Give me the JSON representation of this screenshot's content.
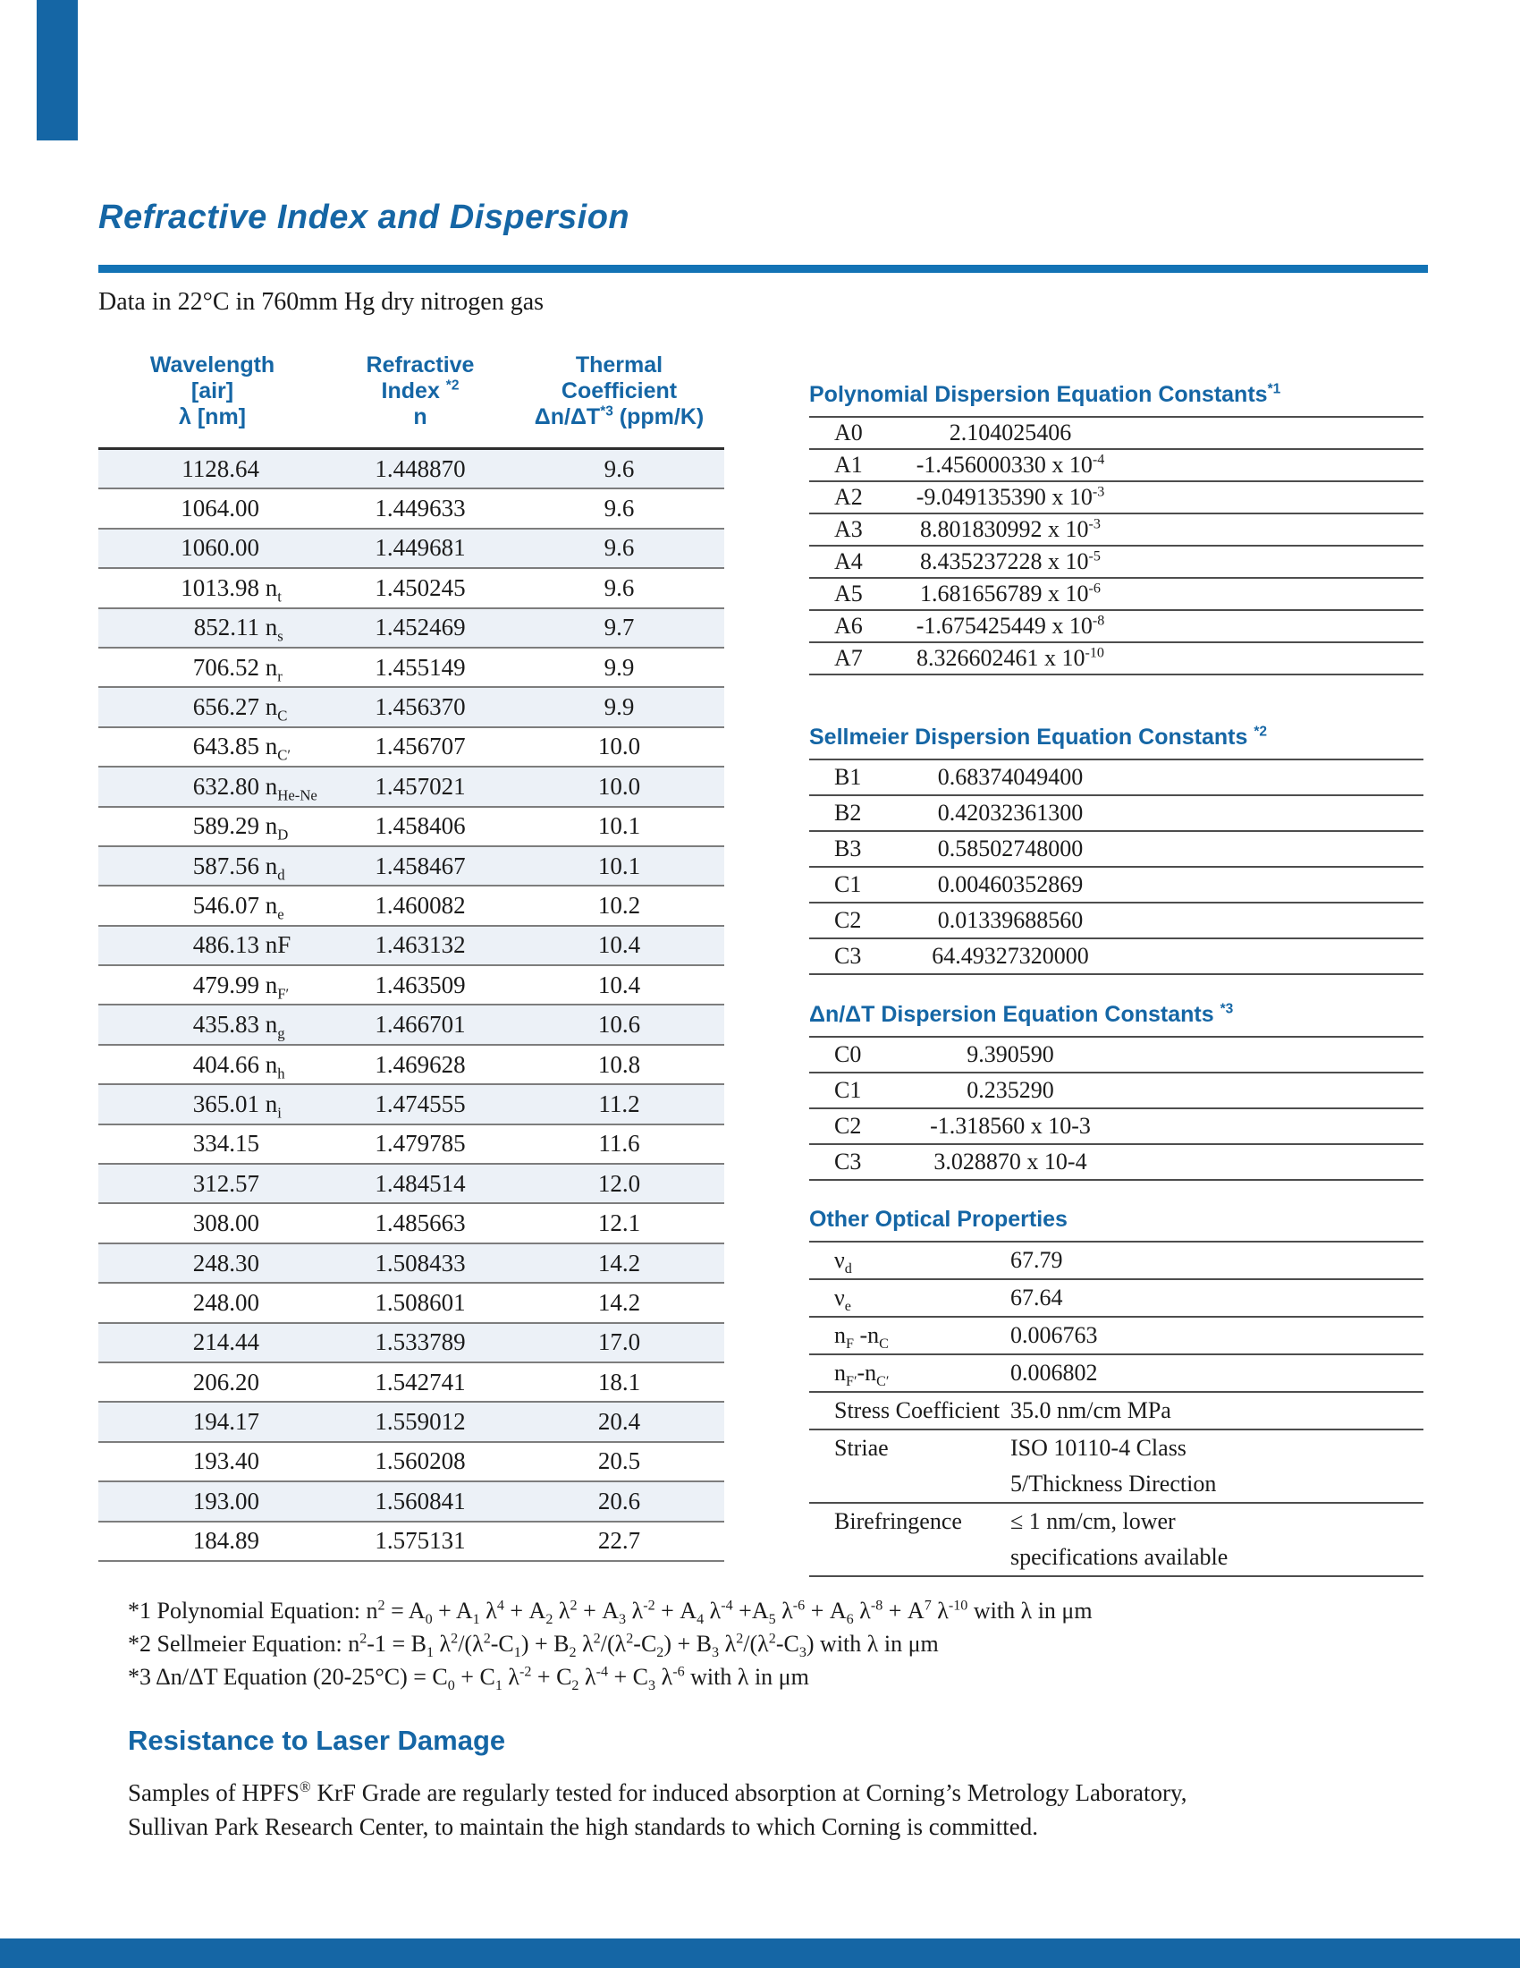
{
  "colors": {
    "heading_blue": "#1566a5",
    "rule_blue": "#1373b5",
    "bar_blue": "#1566a5",
    "row_shade": "#ecf1f7"
  },
  "header": {
    "title": "Refractive Index and Dispersion",
    "subtitle": "Data in 22°C in 760mm Hg dry nitrogen gas"
  },
  "refractive_table": {
    "col_headers": [
      "Wavelength\n[air]\nλ [nm]",
      "Refractive\nIndex ^{*2}\nn",
      "Thermal\nCoefficient\nΔn/ΔT^{*3} (ppm/K)"
    ],
    "rows": [
      [
        "1128.64",
        "1.448870",
        "9.6"
      ],
      [
        "1064.00",
        "1.449633",
        "9.6"
      ],
      [
        "1060.00",
        "1.449681",
        "9.6"
      ],
      [
        "1013.98 n_{t}",
        "1.450245",
        "9.6"
      ],
      [
        "852.11 n_{s}",
        "1.452469",
        "9.7"
      ],
      [
        "706.52 n_{r}",
        "1.455149",
        "9.9"
      ],
      [
        "656.27 n_{C}",
        "1.456370",
        "9.9"
      ],
      [
        "643.85 n_{C′}",
        "1.456707",
        "10.0"
      ],
      [
        "632.80 n_{He-Ne}",
        "1.457021",
        "10.0"
      ],
      [
        "589.29 n_{D}",
        "1.458406",
        "10.1"
      ],
      [
        "587.56 n_{d}",
        "1.458467",
        "10.1"
      ],
      [
        "546.07 n_{e}",
        "1.460082",
        "10.2"
      ],
      [
        "486.13 nF",
        "1.463132",
        "10.4"
      ],
      [
        "479.99 n_{F′}",
        "1.463509",
        "10.4"
      ],
      [
        "435.83 n_{g}",
        "1.466701",
        "10.6"
      ],
      [
        "404.66 n_{h}",
        "1.469628",
        "10.8"
      ],
      [
        "365.01 n_{i}",
        "1.474555",
        "11.2"
      ],
      [
        "334.15",
        "1.479785",
        "11.6"
      ],
      [
        "312.57",
        "1.484514",
        "12.0"
      ],
      [
        "308.00",
        "1.485663",
        "12.1"
      ],
      [
        "248.30",
        "1.508433",
        "14.2"
      ],
      [
        "248.00",
        "1.508601",
        "14.2"
      ],
      [
        "214.44",
        "1.533789",
        "17.0"
      ],
      [
        "206.20",
        "1.542741",
        "18.1"
      ],
      [
        "194.17",
        "1.559012",
        "20.4"
      ],
      [
        "193.40",
        "1.560208",
        "20.5"
      ],
      [
        "193.00",
        "1.560841",
        "20.6"
      ],
      [
        "184.89",
        "1.575131",
        "22.7"
      ]
    ]
  },
  "sections": {
    "polynomial": {
      "title": "Polynomial Dispersion Equation Constants^{*1}",
      "rows": [
        [
          "A0",
          "2.104025406"
        ],
        [
          "A1",
          "-1.456000330 x 10^{-4}"
        ],
        [
          "A2",
          "-9.049135390 x 10^{-3}"
        ],
        [
          "A3",
          "8.801830992 x 10^{-3}"
        ],
        [
          "A4",
          "8.435237228 x 10^{-5}"
        ],
        [
          "A5",
          "1.681656789 x 10^{-6}"
        ],
        [
          "A6",
          "-1.675425449 x 10^{-8}"
        ],
        [
          "A7",
          "8.326602461 x 10^{-10}"
        ]
      ]
    },
    "sellmeier": {
      "title": "Sellmeier Dispersion Equation Constants ^{*2}",
      "rows": [
        [
          "B1",
          "0.68374049400"
        ],
        [
          "B2",
          "0.42032361300"
        ],
        [
          "B3",
          "0.58502748000"
        ],
        [
          "C1",
          "0.00460352869"
        ],
        [
          "C2",
          "0.01339688560"
        ],
        [
          "C3",
          "64.49327320000"
        ]
      ]
    },
    "dndt": {
      "title": "Δn/ΔT Dispersion Equation Constants ^{*3}",
      "rows": [
        [
          "C0",
          "9.390590"
        ],
        [
          "C1",
          "0.235290"
        ],
        [
          "C2",
          "-1.318560 x 10-3"
        ],
        [
          "C3",
          "3.028870 x 10-4"
        ]
      ]
    },
    "optical": {
      "title": "Other Optical Properties",
      "rows": [
        [
          "ν_{d}",
          "67.79"
        ],
        [
          "ν_{e}",
          "67.64"
        ],
        [
          "n_{F} -n_{C}",
          "0.006763"
        ],
        [
          "n_{F′}-n_{C′}",
          "0.006802"
        ],
        [
          "Stress Coefficient",
          "35.0 nm/cm MPa"
        ],
        [
          "Striae",
          "ISO 10110-4 Class\n5/Thickness Direction"
        ],
        [
          "Birefringence",
          "≤ 1 nm/cm, lower\nspecifications available"
        ]
      ]
    }
  },
  "footnotes": [
    "*1 Polynomial Equation: n^{2} = A_{0} + A_{1} λ^{4} + A_{2} λ^{2} + A_{3} λ^{-2} + A_{4} λ^{-4} +A_{5} λ^{-6} + A_{6} λ^{-8} + A^{7} λ^{-10} with λ in μm",
    "*2 Sellmeier Equation: n^{2}-1 = B_{1} λ^{2}/(λ^{2}-C_{1}) + B_{2} λ^{2}/(λ^{2}-C_{2}) + B_{3} λ^{2}/(λ^{2}-C_{3}) with λ in μm",
    "*3 Δn/ΔT Equation (20-25°C) = C_{0} + C_{1} λ^{-2} + C_{2} λ^{-4} + C_{3} λ^{-6} with λ in μm"
  ],
  "laser": {
    "title": "Resistance to Laser Damage",
    "body": "Samples of HPFS^{®} KrF Grade are regularly tested for induced absorption at Corning’s Metrology Laboratory,\nSullivan Park Research Center, to maintain the high standards to which Corning is committed."
  }
}
